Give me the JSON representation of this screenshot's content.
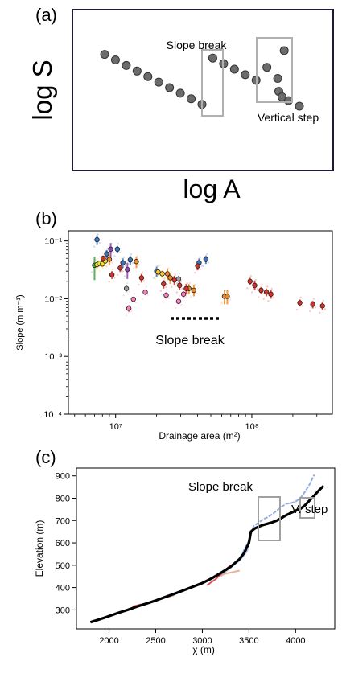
{
  "panel_labels": [
    "(a)",
    "(b)",
    "(c)"
  ],
  "chart_data": [
    {
      "type": "scatter",
      "title": "",
      "xlabel": "log A",
      "ylabel": "log S",
      "annotations": [
        "Slope break",
        "Vertical step"
      ],
      "colors": {
        "marker": "#6b6b6b",
        "box": "#b0b0b0"
      },
      "note_ticks": "no tick labels (schematic)",
      "series": [
        {
          "x": [
            1,
            2,
            3,
            4,
            5,
            6,
            7,
            8,
            9,
            10,
            11,
            12,
            13,
            14,
            15,
            16,
            17,
            17.6,
            17.1,
            17.4,
            18,
            19
          ],
          "y": [
            8.1,
            7.8,
            7.5,
            7.2,
            6.9,
            6.6,
            6.3,
            6.0,
            5.7,
            5.4,
            7.9,
            7.6,
            7.3,
            7.0,
            6.7,
            7.4,
            6.8,
            8.3,
            6.1,
            5.8,
            5.6,
            5.3
          ]
        }
      ]
    },
    {
      "type": "scatter",
      "title": "",
      "xlabel": "Drainage area (m²)",
      "ylabel": "Slope (m m⁻¹)",
      "xscale": "log",
      "yscale": "log",
      "xlim": [
        4500000.0,
        390000000.0
      ],
      "ylim": [
        0.0001,
        0.15
      ],
      "xticks": [
        "10⁷",
        "10⁸"
      ],
      "yticks": [
        "10⁻⁴",
        "10⁻³",
        "10⁻²",
        "10⁻¹"
      ],
      "annotation": "Slope break",
      "series": [
        {
          "color": "#43a047",
          "x": [
            7000000.0
          ],
          "y": [
            0.038
          ],
          "yerr_lo": [
            0.017
          ],
          "yerr_hi": [
            0.015
          ]
        },
        {
          "color": "#f2e030",
          "x": [
            7300000.0,
            7600000.0,
            8000000.0,
            8400000.0
          ],
          "y": [
            0.039,
            0.041,
            0.04,
            0.045
          ],
          "yerr_lo": [
            0.005,
            0.005,
            0.005,
            0.005
          ],
          "yerr_hi": [
            0.005,
            0.005,
            0.005,
            0.005
          ]
        },
        {
          "color": "#3b73b9",
          "x": [
            7300000.0,
            8600000.0,
            10300000.0,
            11300000.0,
            12800000.0,
            20000000.0,
            41000000.0,
            46000000.0
          ],
          "y": [
            0.105,
            0.06,
            0.072,
            0.042,
            0.047,
            0.03,
            0.042,
            0.048
          ],
          "yerr_lo": [
            0.02,
            0.01,
            0.01,
            0.008,
            0.008,
            0.006,
            0.008,
            0.008
          ],
          "yerr_hi": [
            0.02,
            0.01,
            0.01,
            0.008,
            0.008,
            0.006,
            0.008,
            0.008
          ]
        },
        {
          "color": "#8e44ad",
          "x": [
            9200000.0,
            12200000.0
          ],
          "y": [
            0.072,
            0.032
          ],
          "yerr_lo": [
            0.02,
            0.01
          ],
          "yerr_hi": [
            0.02,
            0.01
          ]
        },
        {
          "color": "#f08a24",
          "x": [
            9000000.0,
            14200000.0,
            24000000.0,
            25200000.0,
            34500000.0,
            37500000.0,
            63000000.0,
            66000000.0
          ],
          "y": [
            0.048,
            0.044,
            0.027,
            0.023,
            0.015,
            0.014,
            0.011,
            0.011
          ],
          "yerr_lo": [
            0.01,
            0.01,
            0.006,
            0.005,
            0.003,
            0.003,
            0.003,
            0.003
          ],
          "yerr_hi": [
            0.01,
            0.01,
            0.006,
            0.005,
            0.003,
            0.003,
            0.003,
            0.003
          ]
        },
        {
          "color": "#ffcc33",
          "x": [
            20500000.0,
            22000000.0
          ],
          "y": [
            0.029,
            0.027
          ],
          "yerr_lo": [
            0.004,
            0.004
          ],
          "yerr_hi": [
            0.004,
            0.004
          ]
        },
        {
          "color": "#d7302a",
          "x": [
            8100000.0,
            9400000.0,
            10800000.0,
            15500000.0,
            22500000.0,
            27000000.0,
            29500000.0,
            33000000.0,
            40000000.0,
            97000000.0,
            105000000.0,
            117000000.0,
            128000000.0,
            138000000.0,
            225000000.0,
            280000000.0,
            330000000.0
          ],
          "y": [
            0.05,
            0.026,
            0.034,
            0.023,
            0.018,
            0.021,
            0.017,
            0.015,
            0.037,
            0.02,
            0.017,
            0.014,
            0.013,
            0.012,
            0.0085,
            0.008,
            0.0075
          ],
          "yerr_lo": [
            0.006,
            0.004,
            0.005,
            0.004,
            0.003,
            0.004,
            0.003,
            0.003,
            0.006,
            0.003,
            0.003,
            0.002,
            0.002,
            0.002,
            0.0012,
            0.0012,
            0.0012
          ],
          "yerr_hi": [
            0.006,
            0.004,
            0.005,
            0.004,
            0.003,
            0.004,
            0.003,
            0.003,
            0.006,
            0.003,
            0.003,
            0.002,
            0.002,
            0.002,
            0.0012,
            0.0012,
            0.0012
          ]
        },
        {
          "color": "#ff80c0",
          "x": [
            12500000.0,
            13500000.0,
            16500000.0,
            23500000.0,
            29000000.0,
            31500000.0
          ],
          "y": [
            0.0068,
            0.0098,
            0.013,
            0.0115,
            0.009,
            0.012
          ],
          "yerr_lo": [
            0.001,
            0.001,
            0.0015,
            0.0015,
            0.001,
            0.0015
          ],
          "yerr_hi": [
            0.001,
            0.001,
            0.0015,
            0.0015,
            0.001,
            0.0015
          ]
        },
        {
          "color": "#9e9e9e",
          "x": [
            12000000.0,
            29000000.0
          ],
          "y": [
            0.015,
            0.022
          ],
          "yerr_lo": [
            0.002,
            0.003
          ],
          "yerr_hi": [
            0.002,
            0.003
          ]
        }
      ]
    },
    {
      "type": "line",
      "title": "",
      "xlabel": "χ (m)",
      "ylabel": "Elevation (m)",
      "xlim": [
        1650,
        4420
      ],
      "ylim": [
        215,
        935
      ],
      "xticks": [
        2000,
        2500,
        3000,
        3500,
        4000
      ],
      "yticks": [
        300,
        400,
        500,
        600,
        700,
        800,
        900
      ],
      "annotations": [
        "Slope break",
        "V. step"
      ],
      "series": [
        {
          "color": "#000000",
          "x": [
            1800,
            1900,
            2000,
            2100,
            2200,
            2300,
            2400,
            2500,
            2600,
            2700,
            2800,
            2900,
            3000,
            3100,
            3200,
            3300,
            3400,
            3450,
            3500,
            3520,
            3560,
            3600,
            3650,
            3700,
            3750,
            3800,
            3850,
            3900,
            3950,
            4000,
            4050,
            4100,
            4150,
            4200,
            4250,
            4300
          ],
          "y": [
            245,
            258,
            272,
            287,
            300,
            315,
            328,
            342,
            357,
            372,
            388,
            404,
            420,
            441,
            466,
            492,
            528,
            556,
            600,
            650,
            664,
            672,
            680,
            686,
            692,
            700,
            712,
            724,
            734,
            744,
            752,
            768,
            790,
            812,
            835,
            855
          ]
        },
        {
          "color": "#7fa0dd",
          "x": [
            2300,
            2500,
            2700,
            2900,
            3100,
            3300,
            3400,
            3500,
            3550,
            3600,
            3650,
            3700,
            3750,
            3800,
            3850,
            3900,
            3950,
            4000,
            4050,
            4100,
            4150,
            4200
          ],
          "y": [
            318,
            344,
            375,
            405,
            440,
            492,
            530,
            610,
            675,
            690,
            705,
            715,
            728,
            745,
            762,
            775,
            778,
            785,
            800,
            828,
            862,
            905
          ]
        },
        {
          "color": "#e3a082",
          "x": [
            2450,
            2600,
            2700,
            3050,
            3150,
            3250,
            3400
          ],
          "y": [
            337,
            355,
            365,
            430,
            450,
            462,
            476
          ]
        },
        {
          "color": "#cc3333",
          "x": [
            2250,
            2300,
            2400,
            3050,
            3150,
            3250,
            3300
          ],
          "y": [
            315,
            320,
            330,
            410,
            440,
            480,
            500
          ]
        },
        {
          "color": "#b9cdf0",
          "x": [
            3200,
            3300,
            3400,
            3450,
            3500
          ],
          "y": [
            450,
            488,
            520,
            545,
            575
          ]
        }
      ]
    }
  ]
}
